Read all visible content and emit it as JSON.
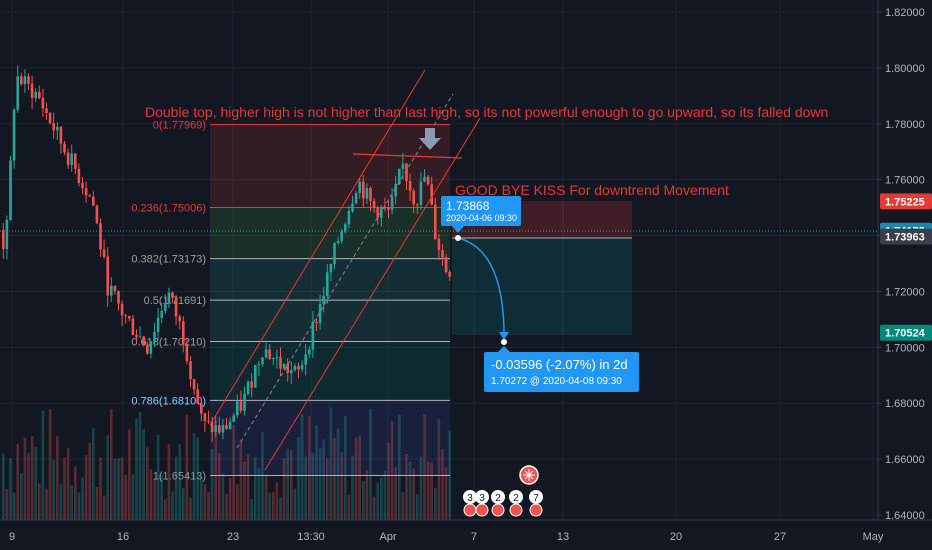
{
  "chart_data": {
    "type": "candlestick",
    "instrument_note": "",
    "y_axis": {
      "range": [
        1.6375,
        1.826
      ],
      "ticks": [
        "1.82000",
        "1.80000",
        "1.78000",
        "1.76000",
        "1.74000",
        "1.72000",
        "1.70000",
        "1.68000",
        "1.66000",
        "1.64000"
      ],
      "tick_values": [
        1.82,
        1.8,
        1.78,
        1.76,
        1.74,
        1.72,
        1.7,
        1.68,
        1.66,
        1.64
      ]
    },
    "x_axis": {
      "ticks": [
        "9",
        "16",
        "23",
        "13:30",
        "Apr",
        "7",
        "13",
        "20",
        "27",
        "May"
      ]
    },
    "price_badges": [
      {
        "label": "1.75225",
        "value": 1.75225,
        "color": "#e53935"
      },
      {
        "label": "1.74172",
        "value": 1.74172,
        "color": "#1e88a8"
      },
      {
        "label": "1.73963",
        "value": 1.73963,
        "color": "#3a3e4a"
      },
      {
        "label": "1.70524",
        "value": 1.70524,
        "color": "#00897b"
      }
    ],
    "fibonacci": [
      {
        "label": "0(1.77969)",
        "level": 0,
        "value": 1.77969
      },
      {
        "label": "0.236(1.75006)",
        "level": 0.236,
        "value": 1.75006
      },
      {
        "label": "0.382(1.73173)",
        "level": 0.382,
        "value": 1.73173
      },
      {
        "label": "0.5(1.71691)",
        "level": 0.5,
        "value": 1.71691
      },
      {
        "label": "0.618(1.70210)",
        "level": 0.618,
        "value": 1.7021
      },
      {
        "label": "0.786(1.68100)",
        "level": 0.786,
        "value": 1.681
      },
      {
        "label": "1(1.65413)",
        "level": 1,
        "value": 1.65413
      }
    ],
    "annotations": {
      "main": "Double top, higher high is not higher than last high, so its not powerful enough to go upward, so its falled down",
      "kiss": "GOOD BYE KISS For downtrend Movement"
    },
    "callouts": [
      {
        "price": "1.73868",
        "time": "2020-04-06 09:30"
      },
      {
        "change": "-0.03596 (-2.07%) in 2d",
        "detail": "1.70272 @ 2020-04-08  09:30"
      }
    ],
    "event_markers": [
      "3",
      "3",
      "2",
      "2",
      "7"
    ],
    "grid": true
  }
}
